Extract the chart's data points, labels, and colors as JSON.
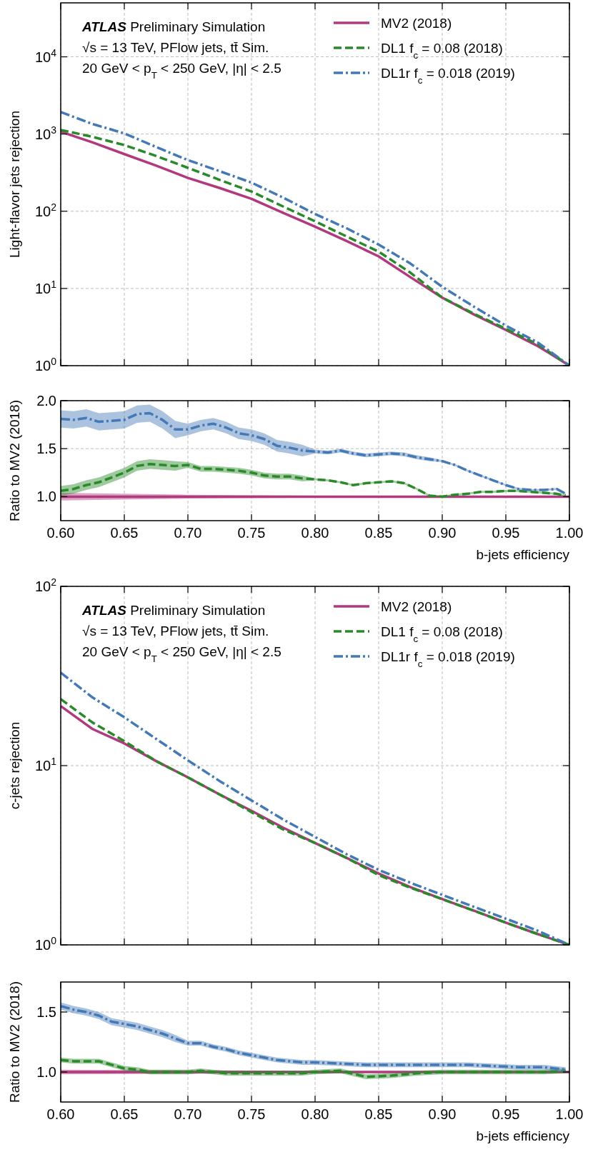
{
  "chart_data": [
    {
      "type": "line",
      "ylabel": "Light-flavor jets rejection",
      "log": "y",
      "grid": true,
      "legend": "top right",
      "tick_labels": "y",
      "annotations": [
        "ATLAS Preliminary Simulation",
        "√s = 13 TeV, PFlow jets, tt̄ Sim.",
        "20 GeV < p$_{T}$ < 250 GeV, |η| < 2.5"
      ],
      "xlim": [
        0.6,
        1.0
      ],
      "xticks": [
        0.6,
        0.65,
        0.7,
        0.75,
        0.8,
        0.85,
        0.9,
        0.95,
        1.0
      ],
      "ylim": [
        1,
        50000
      ],
      "yticks": [
        {
          "value": 1,
          "label": "10$^{0}$"
        },
        {
          "value": 10,
          "label": "10$^{1}$"
        },
        {
          "value": 100,
          "label": "10$^{2}$"
        },
        {
          "value": 1000,
          "label": "10$^{3}$"
        },
        {
          "value": 10000,
          "label": "10$^{4}$"
        }
      ],
      "x": [
        0.6,
        0.625,
        0.65,
        0.675,
        0.7,
        0.725,
        0.75,
        0.775,
        0.8,
        0.825,
        0.85,
        0.875,
        0.9,
        0.925,
        0.95,
        0.975,
        1.0
      ],
      "series": [
        {
          "name": "MV2 (2018)",
          "color": "#b13a7f",
          "line_style": "solid",
          "values": [
            1070,
            780,
            550,
            390,
            270,
            200,
            145,
            95,
            63,
            41,
            26,
            14,
            7.6,
            4.6,
            2.9,
            1.8,
            1
          ]
        },
        {
          "name": "DL1 f$_{c}$ = 0.08 (2018)",
          "color": "#2a8a2a",
          "line_style": "dashed",
          "values": [
            1130,
            920,
            720,
            520,
            365,
            255,
            180,
            115,
            74,
            47,
            30,
            16,
            7.6,
            4.7,
            3.0,
            1.9,
            1
          ]
        },
        {
          "name": "DL1r f$_{c}$ = 0.018 (2019)",
          "color": "#4479b5",
          "line_style": "dashdot",
          "values": [
            1930,
            1350,
            1020,
            680,
            460,
            330,
            235,
            150,
            92,
            60,
            37,
            21,
            10.5,
            5.8,
            3.3,
            2.0,
            1
          ]
        }
      ]
    },
    {
      "type": "line",
      "ylabel": "Ratio to MV2 (2018)",
      "xlabel": "b-jets efficiency",
      "grid": true,
      "xlim": [
        0.6,
        1.0
      ],
      "xticks": [
        {
          "value": 0.6,
          "label": "0.60"
        },
        {
          "value": 0.65,
          "label": "0.65"
        },
        {
          "value": 0.7,
          "label": "0.70"
        },
        {
          "value": 0.75,
          "label": "0.75"
        },
        {
          "value": 0.8,
          "label": "0.80"
        },
        {
          "value": 0.85,
          "label": "0.85"
        },
        {
          "value": 0.9,
          "label": "0.90"
        },
        {
          "value": 0.95,
          "label": "0.95"
        },
        {
          "value": 1.0,
          "label": "1.00"
        }
      ],
      "ylim": [
        0.75,
        2.0
      ],
      "yticks": [
        {
          "value": 1.0,
          "label": "1.0"
        },
        {
          "value": 1.5,
          "label": "1.5"
        },
        {
          "value": 2.0,
          "label": "2.0"
        }
      ],
      "x": [
        0.6,
        0.61,
        0.62,
        0.63,
        0.64,
        0.65,
        0.66,
        0.67,
        0.68,
        0.69,
        0.7,
        0.71,
        0.72,
        0.73,
        0.74,
        0.75,
        0.76,
        0.77,
        0.78,
        0.79,
        0.8,
        0.81,
        0.82,
        0.83,
        0.84,
        0.85,
        0.86,
        0.87,
        0.88,
        0.89,
        0.9,
        0.91,
        0.92,
        0.93,
        0.94,
        0.95,
        0.96,
        0.97,
        0.98,
        0.99,
        0.997
      ],
      "series": [
        {
          "color": "#b13a7f",
          "line_style": "solid",
          "x": [
            0.6,
            0.7,
            0.8,
            0.9,
            1.0
          ],
          "values": [
            1,
            1,
            1,
            1,
            1
          ],
          "lower": [
            0.96,
            0.98,
            0.99,
            1.0,
            1.0
          ],
          "upper": [
            1.04,
            1.02,
            1.01,
            1.0,
            1.0
          ]
        },
        {
          "color": "#2a8a2a",
          "line_style": "dashed",
          "values": [
            1.06,
            1.08,
            1.12,
            1.15,
            1.2,
            1.25,
            1.32,
            1.34,
            1.33,
            1.32,
            1.33,
            1.29,
            1.29,
            1.28,
            1.27,
            1.25,
            1.22,
            1.21,
            1.21,
            1.19,
            1.18,
            1.17,
            1.15,
            1.12,
            1.14,
            1.15,
            1.16,
            1.14,
            1.08,
            1.01,
            1.0,
            1.02,
            1.03,
            1.05,
            1.05,
            1.06,
            1.06,
            1.05,
            1.04,
            1.03,
            1.01
          ],
          "lower": [
            1.01,
            1.03,
            1.07,
            1.1,
            1.15,
            1.2,
            1.27,
            1.29,
            1.28,
            1.27,
            1.3,
            1.26,
            1.26,
            1.25,
            1.24,
            1.22,
            1.19,
            1.18,
            1.18,
            1.16,
            1.17,
            1.16,
            1.14,
            1.11,
            1.13,
            1.14,
            1.15,
            1.13,
            1.07,
            1.0,
            0.99,
            1.01,
            1.02,
            1.04,
            1.04,
            1.05,
            1.05,
            1.04,
            1.03,
            1.02,
            1.0
          ],
          "upper": [
            1.11,
            1.13,
            1.17,
            1.2,
            1.25,
            1.3,
            1.37,
            1.39,
            1.38,
            1.37,
            1.36,
            1.32,
            1.32,
            1.31,
            1.3,
            1.28,
            1.25,
            1.24,
            1.24,
            1.22,
            1.19,
            1.18,
            1.16,
            1.13,
            1.15,
            1.16,
            1.17,
            1.15,
            1.09,
            1.02,
            1.01,
            1.03,
            1.04,
            1.06,
            1.06,
            1.07,
            1.07,
            1.06,
            1.05,
            1.04,
            1.02
          ]
        },
        {
          "color": "#4479b5",
          "line_style": "dashdot",
          "values": [
            1.81,
            1.8,
            1.82,
            1.78,
            1.79,
            1.8,
            1.86,
            1.87,
            1.8,
            1.7,
            1.7,
            1.74,
            1.76,
            1.72,
            1.66,
            1.64,
            1.6,
            1.53,
            1.51,
            1.48,
            1.47,
            1.46,
            1.48,
            1.45,
            1.43,
            1.44,
            1.45,
            1.44,
            1.41,
            1.39,
            1.37,
            1.33,
            1.27,
            1.22,
            1.17,
            1.12,
            1.08,
            1.07,
            1.07,
            1.08,
            1.03
          ],
          "lower": [
            1.72,
            1.71,
            1.73,
            1.69,
            1.7,
            1.71,
            1.77,
            1.78,
            1.71,
            1.61,
            1.64,
            1.68,
            1.7,
            1.66,
            1.6,
            1.58,
            1.54,
            1.47,
            1.45,
            1.42,
            1.45,
            1.44,
            1.46,
            1.43,
            1.41,
            1.42,
            1.43,
            1.42,
            1.39,
            1.37,
            1.36,
            1.32,
            1.26,
            1.21,
            1.16,
            1.11,
            1.07,
            1.06,
            1.06,
            1.07,
            1.02
          ],
          "upper": [
            1.9,
            1.89,
            1.91,
            1.87,
            1.88,
            1.89,
            1.95,
            1.96,
            1.89,
            1.79,
            1.76,
            1.8,
            1.82,
            1.78,
            1.72,
            1.7,
            1.66,
            1.59,
            1.57,
            1.54,
            1.49,
            1.48,
            1.5,
            1.47,
            1.45,
            1.46,
            1.47,
            1.46,
            1.43,
            1.41,
            1.38,
            1.34,
            1.28,
            1.23,
            1.18,
            1.13,
            1.09,
            1.08,
            1.08,
            1.09,
            1.04
          ]
        }
      ]
    },
    {
      "type": "line",
      "ylabel": "c-jets rejection",
      "log": "y",
      "grid": true,
      "legend": "top right",
      "tick_labels": "y",
      "annotations": [
        "ATLAS Preliminary Simulation",
        "√s = 13 TeV, PFlow jets, tt̄ Sim.",
        "20 GeV < p$_{T}$ < 250 GeV, |η| < 2.5"
      ],
      "xlim": [
        0.6,
        1.0
      ],
      "xticks": [
        0.6,
        0.65,
        0.7,
        0.75,
        0.8,
        0.85,
        0.9,
        0.95,
        1.0
      ],
      "ylim": [
        1,
        100
      ],
      "yticks": [
        {
          "value": 1,
          "label": "10$^{0}$"
        },
        {
          "value": 10,
          "label": "10$^{1}$"
        },
        {
          "value": 100,
          "label": "10$^{2}$"
        }
      ],
      "x": [
        0.6,
        0.625,
        0.65,
        0.675,
        0.7,
        0.725,
        0.75,
        0.775,
        0.8,
        0.825,
        0.85,
        0.875,
        0.9,
        0.925,
        0.95,
        0.975,
        1.0
      ],
      "series": [
        {
          "name": "MV2 (2018)",
          "color": "#b13a7f",
          "line_style": "solid",
          "values": [
            21.5,
            16,
            13.3,
            10.6,
            8.6,
            6.9,
            5.6,
            4.5,
            3.7,
            3.05,
            2.5,
            2.1,
            1.8,
            1.55,
            1.33,
            1.15,
            1
          ]
        },
        {
          "name": "DL1 f$_{c}$ = 0.08 (2018)",
          "color": "#2a8a2a",
          "line_style": "dashed",
          "values": [
            23.5,
            17.4,
            13.7,
            10.6,
            8.6,
            6.9,
            5.5,
            4.4,
            3.7,
            3.05,
            2.45,
            2.08,
            1.8,
            1.55,
            1.33,
            1.15,
            1
          ]
        },
        {
          "name": "DL1r f$_{c}$ = 0.018 (2019)",
          "color": "#4479b5",
          "line_style": "dashdot",
          "values": [
            33,
            24,
            18.6,
            14.1,
            10.7,
            8.2,
            6.4,
            5.0,
            4.0,
            3.2,
            2.62,
            2.22,
            1.9,
            1.63,
            1.4,
            1.2,
            1
          ]
        }
      ]
    },
    {
      "type": "line",
      "ylabel": "Ratio to MV2 (2018)",
      "xlabel": "b-jets efficiency",
      "grid": true,
      "xlim": [
        0.6,
        1.0
      ],
      "xticks": [
        {
          "value": 0.6,
          "label": "0.60"
        },
        {
          "value": 0.65,
          "label": "0.65"
        },
        {
          "value": 0.7,
          "label": "0.70"
        },
        {
          "value": 0.75,
          "label": "0.75"
        },
        {
          "value": 0.8,
          "label": "0.80"
        },
        {
          "value": 0.85,
          "label": "0.85"
        },
        {
          "value": 0.9,
          "label": "0.90"
        },
        {
          "value": 0.95,
          "label": "0.95"
        },
        {
          "value": 1.0,
          "label": "1.00"
        }
      ],
      "ylim": [
        0.75,
        1.75
      ],
      "yticks": [
        {
          "value": 1.0,
          "label": "1.0"
        },
        {
          "value": 1.5,
          "label": "1.5"
        }
      ],
      "x": [
        0.6,
        0.61,
        0.62,
        0.63,
        0.64,
        0.65,
        0.66,
        0.67,
        0.68,
        0.69,
        0.7,
        0.71,
        0.72,
        0.73,
        0.74,
        0.75,
        0.76,
        0.77,
        0.78,
        0.79,
        0.8,
        0.82,
        0.84,
        0.86,
        0.88,
        0.9,
        0.92,
        0.94,
        0.96,
        0.98,
        0.997
      ],
      "series": [
        {
          "color": "#b13a7f",
          "line_style": "solid",
          "x": [
            0.6,
            0.8,
            1.0
          ],
          "values": [
            1,
            1,
            1
          ],
          "lower": [
            0.98,
            0.99,
            1.0
          ],
          "upper": [
            1.02,
            1.01,
            1.0
          ]
        },
        {
          "color": "#2a8a2a",
          "line_style": "dashed",
          "values": [
            1.1,
            1.09,
            1.09,
            1.09,
            1.06,
            1.03,
            1.02,
            1.0,
            1.0,
            1.0,
            1.0,
            1.01,
            1.0,
            0.99,
            0.99,
            0.99,
            0.99,
            0.99,
            0.99,
            0.99,
            1.0,
            1.01,
            0.96,
            0.97,
            0.99,
            1.0,
            1.0,
            1.0,
            1.0,
            1.0,
            1.01
          ],
          "lower": [
            1.08,
            1.07,
            1.07,
            1.07,
            1.04,
            1.01,
            1.0,
            0.98,
            0.98,
            0.98,
            0.98,
            0.99,
            0.98,
            0.97,
            0.97,
            0.97,
            0.97,
            0.97,
            0.97,
            0.97,
            0.98,
            0.99,
            0.94,
            0.95,
            0.97,
            0.98,
            0.98,
            0.98,
            0.98,
            0.98,
            0.99
          ],
          "upper": [
            1.12,
            1.11,
            1.11,
            1.11,
            1.08,
            1.05,
            1.04,
            1.02,
            1.02,
            1.02,
            1.02,
            1.03,
            1.02,
            1.01,
            1.01,
            1.01,
            1.01,
            1.01,
            1.01,
            1.01,
            1.02,
            1.03,
            0.98,
            0.99,
            1.01,
            1.02,
            1.02,
            1.02,
            1.02,
            1.02,
            1.03
          ]
        },
        {
          "color": "#4479b5",
          "line_style": "dashdot",
          "values": [
            1.55,
            1.52,
            1.5,
            1.47,
            1.42,
            1.4,
            1.38,
            1.35,
            1.32,
            1.28,
            1.24,
            1.24,
            1.21,
            1.19,
            1.16,
            1.14,
            1.12,
            1.1,
            1.09,
            1.08,
            1.08,
            1.07,
            1.06,
            1.06,
            1.06,
            1.06,
            1.06,
            1.05,
            1.04,
            1.04,
            1.02
          ],
          "lower": [
            1.52,
            1.49,
            1.47,
            1.44,
            1.39,
            1.37,
            1.35,
            1.32,
            1.29,
            1.25,
            1.22,
            1.22,
            1.19,
            1.17,
            1.14,
            1.12,
            1.1,
            1.08,
            1.07,
            1.06,
            1.06,
            1.05,
            1.04,
            1.04,
            1.04,
            1.04,
            1.04,
            1.03,
            1.02,
            1.02,
            1.0
          ],
          "upper": [
            1.58,
            1.55,
            1.53,
            1.5,
            1.45,
            1.43,
            1.41,
            1.38,
            1.35,
            1.31,
            1.26,
            1.26,
            1.23,
            1.21,
            1.18,
            1.16,
            1.14,
            1.12,
            1.11,
            1.1,
            1.1,
            1.09,
            1.08,
            1.08,
            1.08,
            1.08,
            1.08,
            1.07,
            1.06,
            1.06,
            1.04
          ]
        }
      ]
    }
  ]
}
